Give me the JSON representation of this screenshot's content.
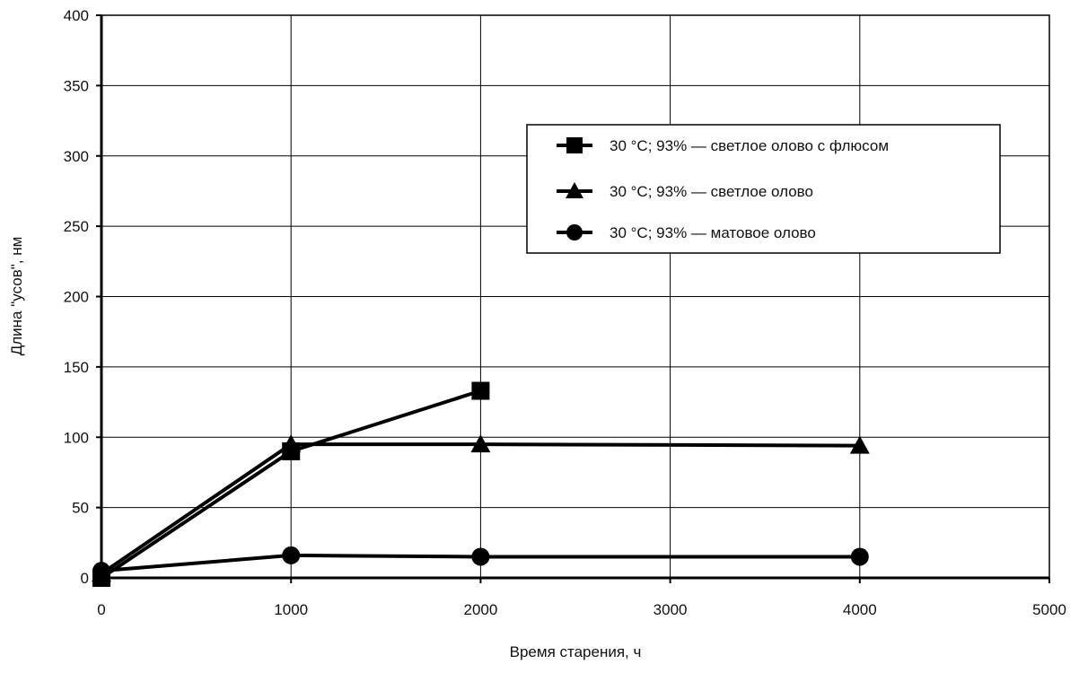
{
  "chart_data": {
    "type": "line",
    "title": "",
    "xlabel": "Время старения, ч",
    "ylabel": "Длина \"усов\", нм",
    "xlim": [
      0,
      5000
    ],
    "ylim": [
      0,
      400
    ],
    "xticks": [
      0,
      1000,
      2000,
      3000,
      4000,
      5000
    ],
    "yticks": [
      0,
      50,
      100,
      150,
      200,
      250,
      300,
      350,
      400
    ],
    "grid": true,
    "legend_position": "right, upper-middle",
    "series": [
      {
        "name": "30 °С; 93% — светлое олово с флюсом",
        "marker": "square",
        "color": "#000000",
        "x": [
          0,
          1000,
          2000
        ],
        "y": [
          0,
          90,
          133
        ]
      },
      {
        "name": "30 °С; 93% — светлое олово",
        "marker": "triangle",
        "color": "#000000",
        "x": [
          0,
          1000,
          2000,
          4000
        ],
        "y": [
          3,
          95,
          95,
          94
        ]
      },
      {
        "name": "30 °С; 93% — матовое олово",
        "marker": "circle",
        "color": "#000000",
        "x": [
          0,
          1000,
          2000,
          4000
        ],
        "y": [
          5,
          16,
          15,
          15
        ]
      }
    ]
  }
}
